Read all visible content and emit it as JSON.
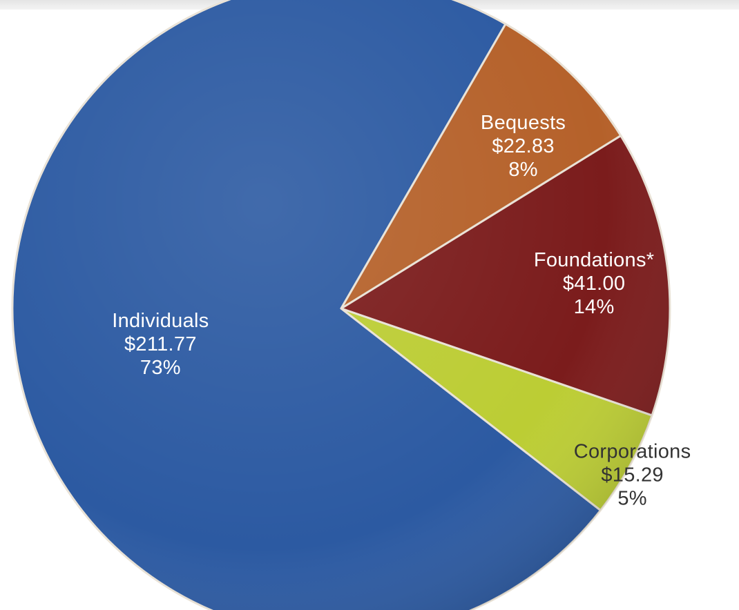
{
  "chart_data": {
    "type": "pie",
    "title": "",
    "start_angle_deg": 60,
    "direction": "counterclockwise",
    "slices": [
      {
        "label": "Individuals",
        "amount": "$211.77",
        "percent_label": "73%",
        "value": 211.77,
        "color": "#2c5aa2",
        "label_color": "#ffffff"
      },
      {
        "label": "Corporations",
        "amount": "$15.29",
        "percent_label": "5%",
        "value": 15.29,
        "color": "#bccd34",
        "label_color": "#333333"
      },
      {
        "label": "Foundations*",
        "amount": "$41.00",
        "percent_label": "14%",
        "value": 41.0,
        "color": "#7b1c1c",
        "label_color": "#ffffff"
      },
      {
        "label": "Bequests",
        "amount": "$22.83",
        "percent_label": "8%",
        "value": 22.83,
        "color": "#b5612a",
        "label_color": "#ffffff"
      }
    ]
  }
}
